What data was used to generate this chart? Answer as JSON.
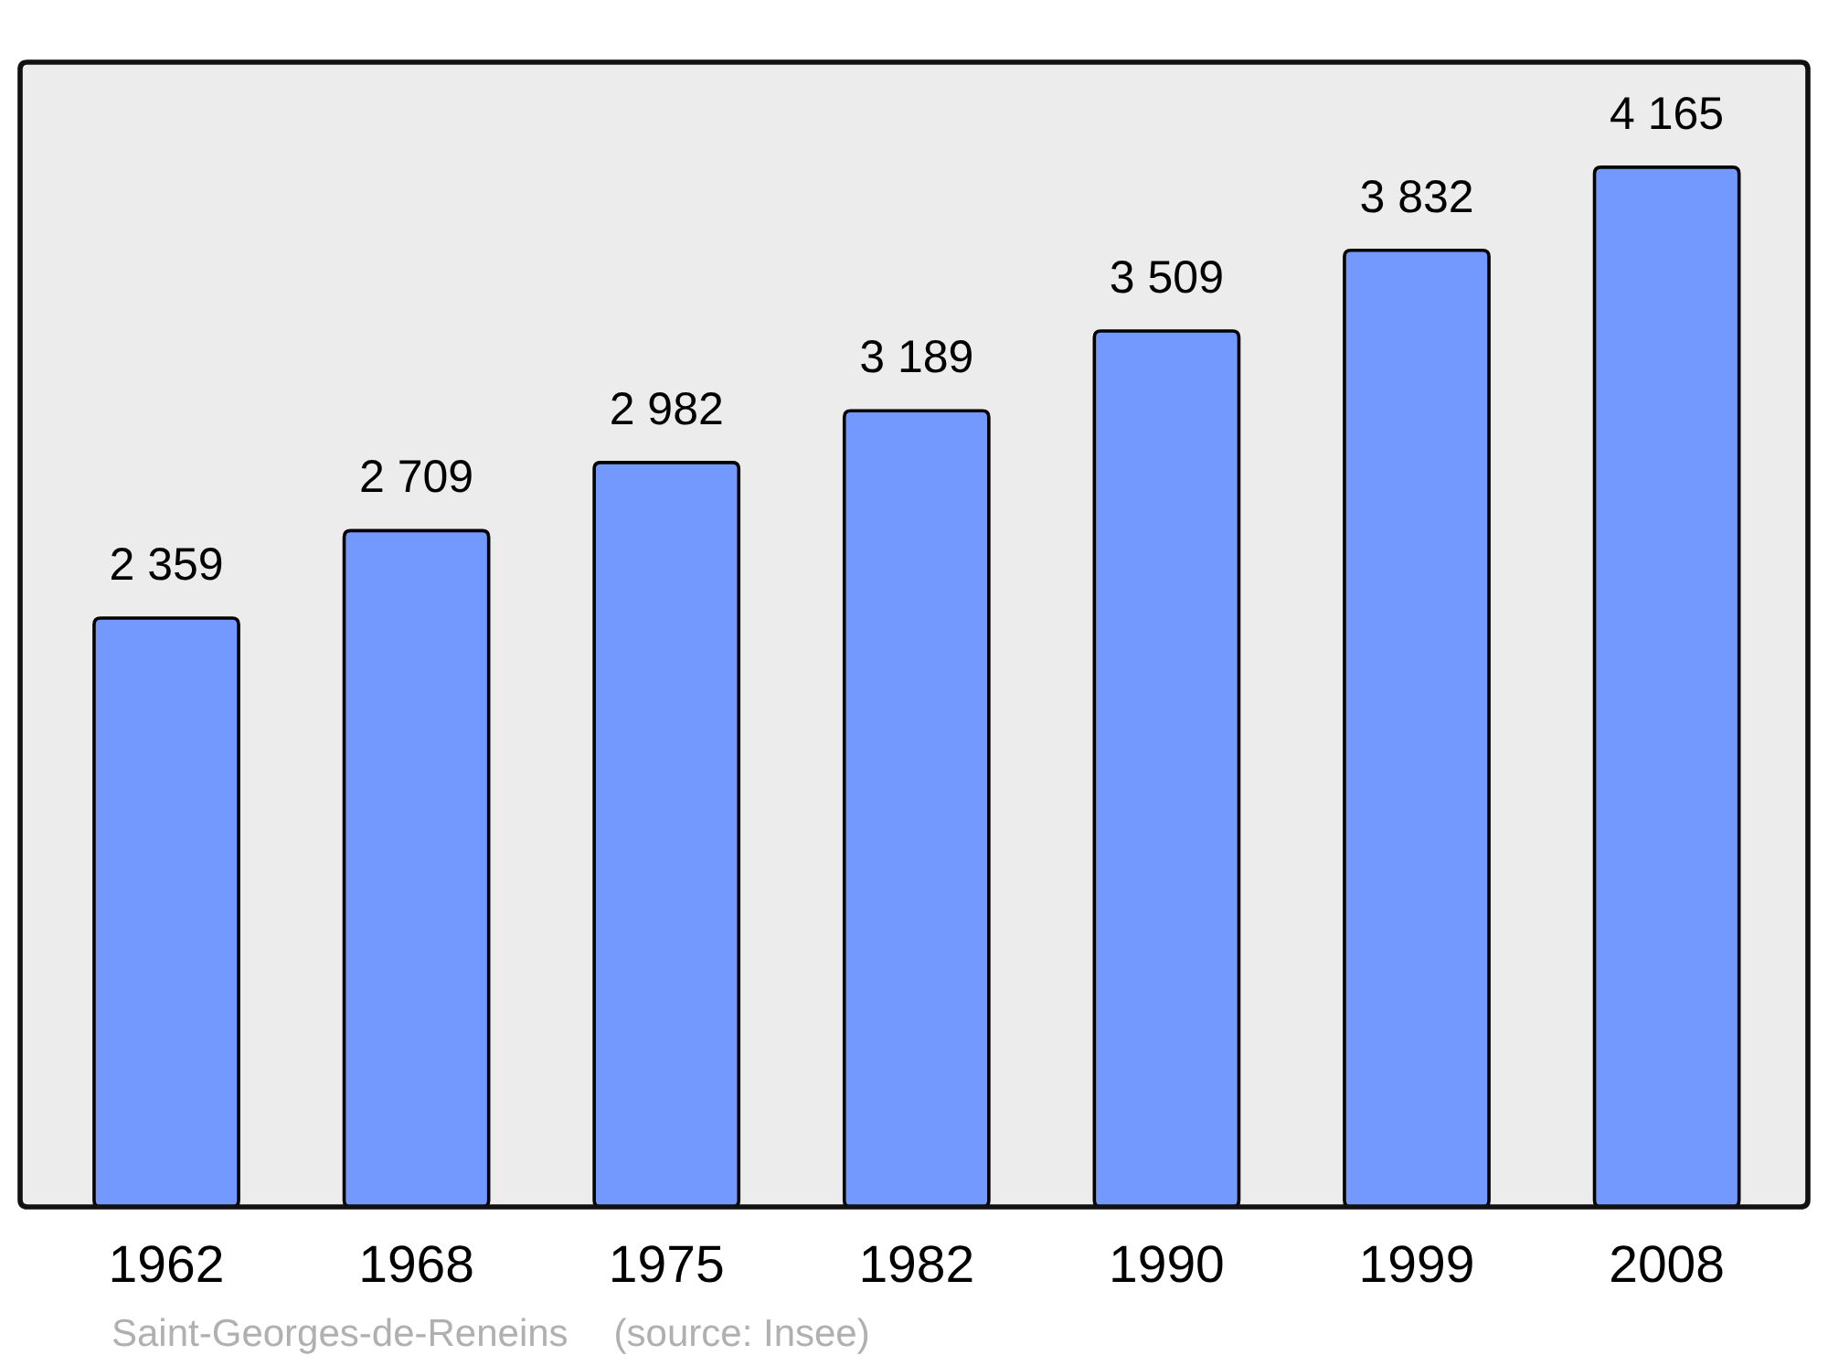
{
  "chart_data": {
    "type": "bar",
    "categories": [
      "1962",
      "1968",
      "1975",
      "1982",
      "1990",
      "1999",
      "2008"
    ],
    "values": [
      2359,
      2709,
      2982,
      3189,
      3509,
      3832,
      4165
    ],
    "color": "#7399ff",
    "value_labels": [
      "2 359",
      "2 709",
      "2 982",
      "3 189",
      "3 509",
      "3 832",
      "4 165"
    ],
    "annotations": [
      "Saint-Georges-de-Reneins",
      "(source: Insee)"
    ]
  }
}
